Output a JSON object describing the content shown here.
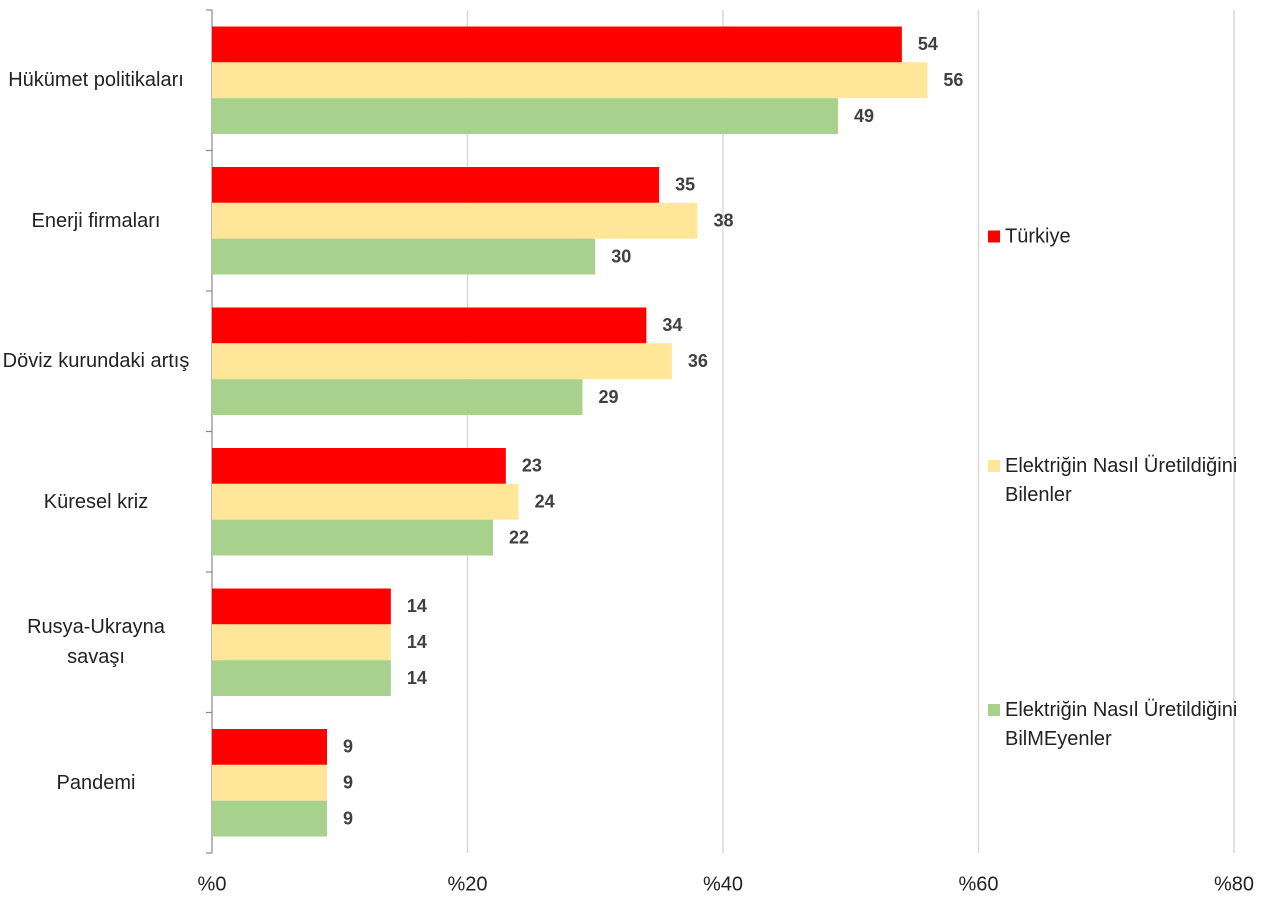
{
  "chart_data": {
    "type": "hbar",
    "categories": [
      "Hükümet politikaları",
      "Enerji firmaları",
      "Döviz kurundaki artış",
      "Küresel kriz",
      "Rusya-Ukrayna savaşı",
      "Pandemi"
    ],
    "series": [
      {
        "name": "Türkiye",
        "color": "#ff0000",
        "values": [
          54,
          35,
          34,
          23,
          14,
          9
        ]
      },
      {
        "name": "Elektriğin Nasıl Üretildiğini Bilenler",
        "color": "#ffe699",
        "values": [
          56,
          38,
          36,
          24,
          14,
          9
        ]
      },
      {
        "name": "Elektriğin Nasıl Üretildiğini BilMEyenler",
        "color": "#a9d18e",
        "values": [
          49,
          30,
          29,
          22,
          14,
          9
        ]
      }
    ],
    "xlim": [
      0,
      80
    ],
    "xticks": [
      {
        "value": 0,
        "label": "%0"
      },
      {
        "value": 20,
        "label": "%20"
      },
      {
        "value": 40,
        "label": "%40"
      },
      {
        "value": 60,
        "label": "%60"
      },
      {
        "value": 80,
        "label": "%80"
      }
    ],
    "grid": true,
    "legend": "right"
  }
}
